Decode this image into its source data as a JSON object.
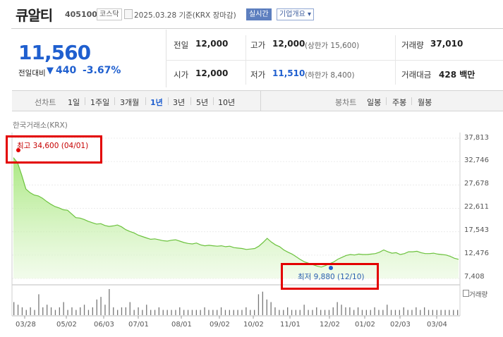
{
  "stock": {
    "name": "큐알티",
    "code": "405100",
    "market_tag": "코스닥",
    "date_text": "2025.03.28  기준(KRX 장마감)",
    "realtime_tag": "실시간",
    "company_tag": "기업개요 ▾"
  },
  "price": {
    "current": "11,560",
    "change_label": "전일대비",
    "change_arrow": "▼",
    "change_amount": "440",
    "change_pct": "-3.67%"
  },
  "quote": {
    "prev_close_label": "전일",
    "prev_close": "12,000",
    "high_label": "고가",
    "high": "12,000",
    "upper_limit": "(상한가 15,600)",
    "volume_label": "거래량",
    "volume": "37,010",
    "open_label": "시가",
    "open": "12,000",
    "low_label": "저가",
    "low": "11,510",
    "lower_limit": "(하한가 8,400)",
    "amount_label": "거래대금",
    "amount": "428 백만"
  },
  "tabs": {
    "line_title": "선차트",
    "line": [
      "1일",
      "1주일",
      "3개월",
      "1년",
      "3년",
      "5년",
      "10년"
    ],
    "active": "1년",
    "candle_title": "봉차트",
    "candle": [
      "일봉",
      "주봉",
      "월봉"
    ]
  },
  "chart_source": "한국거래소(KRX)",
  "annotations": {
    "high": "최고 34,600 (04/01)",
    "low": "최저 9,880 (12/10)",
    "volume_label": "거래량"
  },
  "colors": {
    "accent_blue": "#1f5fcf",
    "highlight_red": "#e30000",
    "area_green": "#7fd34a"
  },
  "chart_data": {
    "type": "area",
    "xlabel": "",
    "ylabel": "",
    "y_ticks": [
      "37,813",
      "32,746",
      "27,678",
      "22,611",
      "17,543",
      "12,476",
      "7,408"
    ],
    "ylim": [
      7408,
      37813
    ],
    "x_ticks": [
      "03/28",
      "05/02",
      "06/03",
      "07/01",
      "08/01",
      "09/02",
      "10/02",
      "11/01",
      "12/02",
      "01/02",
      "02/03",
      "03/04"
    ],
    "grid": true,
    "series": [
      {
        "name": "",
        "values": [
          33600,
          32500,
          29800,
          26800,
          26000,
          25500,
          25300,
          24800,
          24100,
          23500,
          23000,
          22700,
          22300,
          22200,
          21400,
          20600,
          20500,
          20200,
          19800,
          19500,
          19200,
          19300,
          18900,
          18700,
          18800,
          19000,
          18600,
          18000,
          17600,
          17300,
          16800,
          16500,
          16200,
          15900,
          16000,
          15800,
          15600,
          15500,
          15700,
          15800,
          15500,
          15200,
          15000,
          14900,
          15100,
          14700,
          14500,
          14600,
          14500,
          14400,
          14500,
          14300,
          14400,
          14100,
          14000,
          13900,
          13700,
          13800,
          13900,
          14400,
          15200,
          16100,
          15300,
          14700,
          14300,
          13600,
          13100,
          12700,
          12100,
          11500,
          11000,
          10700,
          10400,
          10100,
          9880,
          10200,
          10600,
          11000,
          11600,
          12000,
          12400,
          12600,
          12500,
          12700,
          12600,
          12600,
          12700,
          12800,
          13100,
          13600,
          13200,
          12900,
          13000,
          12600,
          12800,
          13200,
          13200,
          13300,
          13000,
          12800,
          12800,
          12900,
          12700,
          12600,
          12500,
          12200,
          11800,
          11560
        ]
      }
    ],
    "volume": [
      5,
      4,
      3,
      2,
      3,
      2,
      8,
      3,
      4,
      3,
      2,
      3,
      5,
      2,
      3,
      2,
      3,
      4,
      2,
      3,
      6,
      7,
      4,
      10,
      3,
      2,
      3,
      3,
      5,
      2,
      3,
      2,
      4,
      2,
      2,
      3,
      2,
      2,
      2,
      2,
      3,
      2,
      2,
      2,
      2,
      2,
      3,
      2,
      2,
      2,
      3,
      2,
      2,
      2,
      2,
      2,
      3,
      2,
      2,
      8,
      9,
      6,
      5,
      3,
      2,
      2,
      3,
      2,
      2,
      2,
      4,
      2,
      2,
      3,
      2,
      2,
      2,
      3,
      5,
      4,
      3,
      3,
      2,
      3,
      2,
      2,
      2,
      3,
      2,
      2,
      4,
      2,
      2,
      2,
      3,
      2,
      2,
      3,
      2,
      3,
      2,
      2,
      2,
      2,
      2,
      2,
      2,
      2
    ]
  }
}
